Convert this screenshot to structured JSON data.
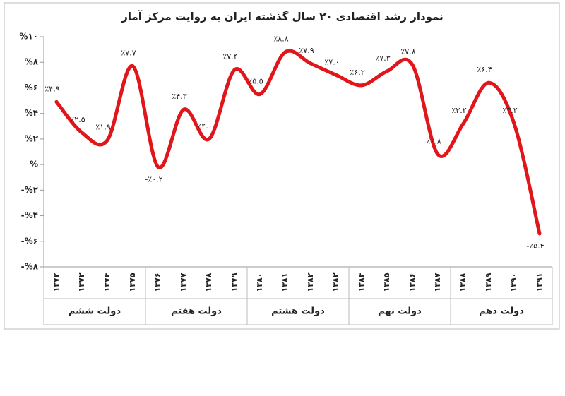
{
  "chart_data": {
    "type": "line",
    "title": "نمودار رشد اقتصادی ۲۰ سال گذشته ایران به روایت مرکز آمار",
    "categories": [
      "۱۳۷۲",
      "۱۳۷۳",
      "۱۳۷۴",
      "۱۳۷۵",
      "۱۳۷۶",
      "۱۳۷۷",
      "۱۳۷۸",
      "۱۳۷۹",
      "۱۳۸۰",
      "۱۳۸۱",
      "۱۳۸۲",
      "۱۳۸۳",
      "۱۳۸۴",
      "۱۳۸۵",
      "۱۳۸۶",
      "۱۳۸۷",
      "۱۳۸۸",
      "۱۳۸۹",
      "۱۳۹۰",
      "۱۳۹۱"
    ],
    "x_groups": [
      {
        "label": "دولت ششم",
        "start": "۱۳۷۲",
        "end": "۱۳۷۵"
      },
      {
        "label": "دولت هفتم",
        "start": "۱۳۷۶",
        "end": "۱۳۷۹"
      },
      {
        "label": "دولت هشتم",
        "start": "۱۳۸۰",
        "end": "۱۳۸۳"
      },
      {
        "label": "دولت نهم",
        "start": "۱۳۸۴",
        "end": "۱۳۸۷"
      },
      {
        "label": "دولت دهم",
        "start": "۱۳۸۸",
        "end": "۱۳۹۱"
      }
    ],
    "series": [
      {
        "color": "#e0161b",
        "values": [
          4.9,
          2.5,
          1.9,
          7.7,
          -0.2,
          4.3,
          2.0,
          7.4,
          5.5,
          8.8,
          7.9,
          7.0,
          6.2,
          7.3,
          7.8,
          0.8,
          3.2,
          6.4,
          3.2,
          -5.4
        ],
        "value_labels": [
          "٪۴.۹",
          "٪۲.۵",
          "٪۱.۹",
          "٪۷.۷",
          "-٪۰.۲",
          "٪۴.۳",
          "٪۲.۰",
          "٪۷.۴",
          "٪۵.۵",
          "٪۸.۸",
          "٪۷.۹",
          "٪۷.۰",
          "٪۶.۲",
          "٪۷.۳",
          "٪۷.۸",
          "٪۰.۸",
          "٪۳.۲",
          "٪۶.۴",
          "٪۳.۲",
          "-٪۵.۴"
        ]
      }
    ],
    "ylim": [
      -8,
      10
    ],
    "yticks": [
      {
        "value": 10,
        "label": "%۱۰"
      },
      {
        "value": 8,
        "label": "%۸"
      },
      {
        "value": 6,
        "label": "%۶"
      },
      {
        "value": 4,
        "label": "%۴"
      },
      {
        "value": 2,
        "label": "%۲"
      },
      {
        "value": 0,
        "label": "%"
      },
      {
        "value": -2,
        "label": "-%۲"
      },
      {
        "value": -4,
        "label": "-%۴"
      },
      {
        "value": -6,
        "label": "-%۶"
      },
      {
        "value": -8,
        "label": "-%۸"
      }
    ]
  }
}
